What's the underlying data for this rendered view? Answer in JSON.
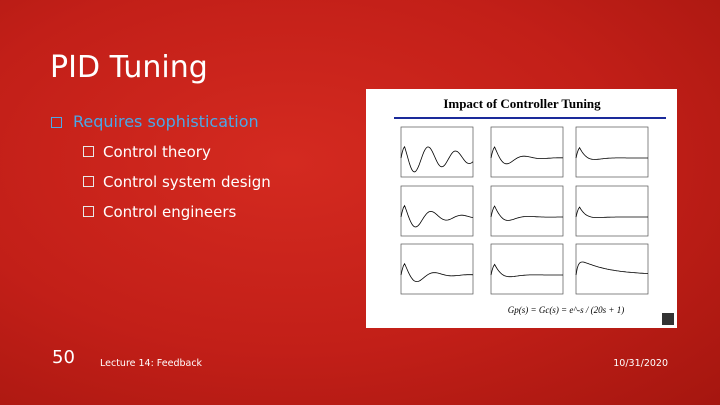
{
  "title": "PID Tuning",
  "bullets": [
    {
      "text": "Requires sophistication",
      "children": [
        "Control theory",
        "Control system design",
        "Control engineers"
      ]
    }
  ],
  "figure": {
    "title": "Impact of Controller Tuning",
    "formula": "Gp(s) = Gc(s) = e^-s / (20s + 1)"
  },
  "footer": {
    "slide_number": "50",
    "text": "Lecture 14: Feedback",
    "date": "10/31/2020"
  }
}
